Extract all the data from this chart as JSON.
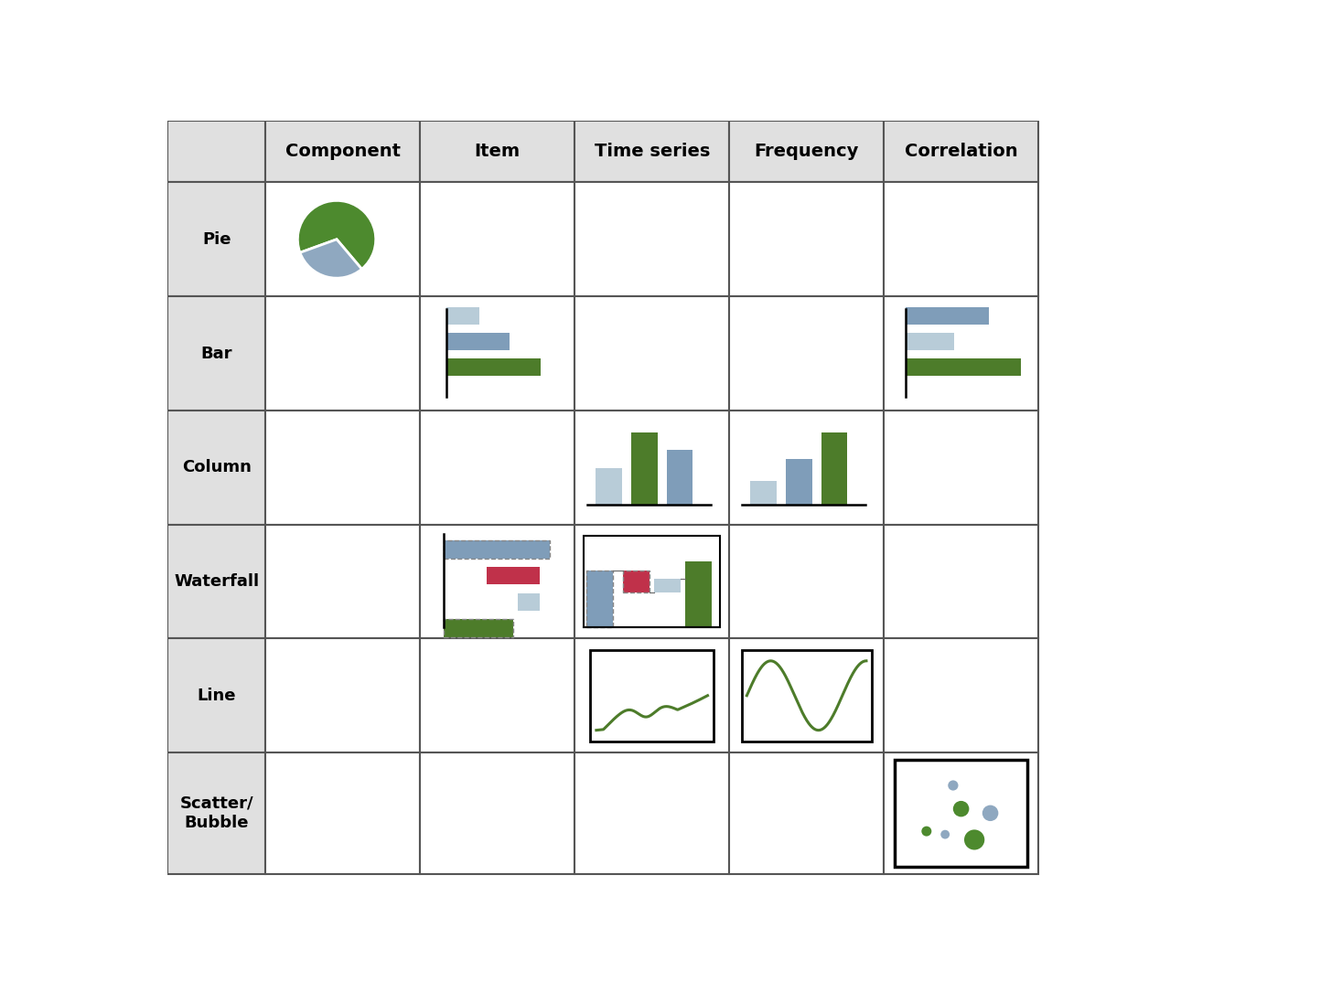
{
  "col_labels": [
    "Component",
    "Item",
    "Time series",
    "Frequency",
    "Correlation"
  ],
  "row_labels": [
    "Pie",
    "Bar",
    "Column",
    "Waterfall",
    "Line",
    "Scatter/\nBubble"
  ],
  "header_bg": "#e0e0e0",
  "cell_bg": "#ffffff",
  "green": "#4d7c2a",
  "steel_blue": "#7f9db9",
  "light_steel": "#b8ccd8",
  "red": "#c0314a",
  "pie_green": "#4d8a2e",
  "pie_blue": "#8fa8c0",
  "col_widths": [
    1.38,
    2.18,
    2.18,
    2.18,
    2.18,
    2.18
  ],
  "row_heights": [
    0.88,
    1.62,
    1.62,
    1.62,
    1.62,
    1.62,
    1.72
  ]
}
